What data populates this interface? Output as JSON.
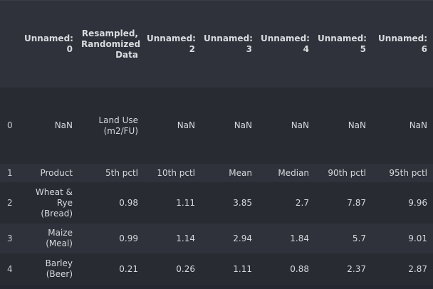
{
  "table": {
    "columns": [
      "",
      "Unnamed: 0",
      "Resampled, Randomized Data",
      "Unnamed: 2",
      "Unnamed: 3",
      "Unnamed: 4",
      "Unnamed: 5",
      "Unnamed: 6"
    ],
    "rows": [
      {
        "index": "0",
        "cells": [
          "NaN",
          "Land Use (m2/FU)",
          "NaN",
          "NaN",
          "NaN",
          "NaN",
          "NaN"
        ]
      },
      {
        "index": "1",
        "cells": [
          "Product",
          "5th pctl",
          "10th pctl",
          "Mean",
          "Median",
          "90th pctl",
          "95th pctl"
        ]
      },
      {
        "index": "2",
        "cells": [
          "Wheat & Rye (Bread)",
          "0.98",
          "1.11",
          "3.85",
          "2.7",
          "7.87",
          "9.96"
        ]
      },
      {
        "index": "3",
        "cells": [
          "Maize (Meal)",
          "0.99",
          "1.14",
          "2.94",
          "1.84",
          "5.7",
          "9.01"
        ]
      },
      {
        "index": "4",
        "cells": [
          "Barley (Beer)",
          "0.21",
          "0.26",
          "1.11",
          "0.88",
          "2.37",
          "2.87"
        ]
      }
    ]
  }
}
